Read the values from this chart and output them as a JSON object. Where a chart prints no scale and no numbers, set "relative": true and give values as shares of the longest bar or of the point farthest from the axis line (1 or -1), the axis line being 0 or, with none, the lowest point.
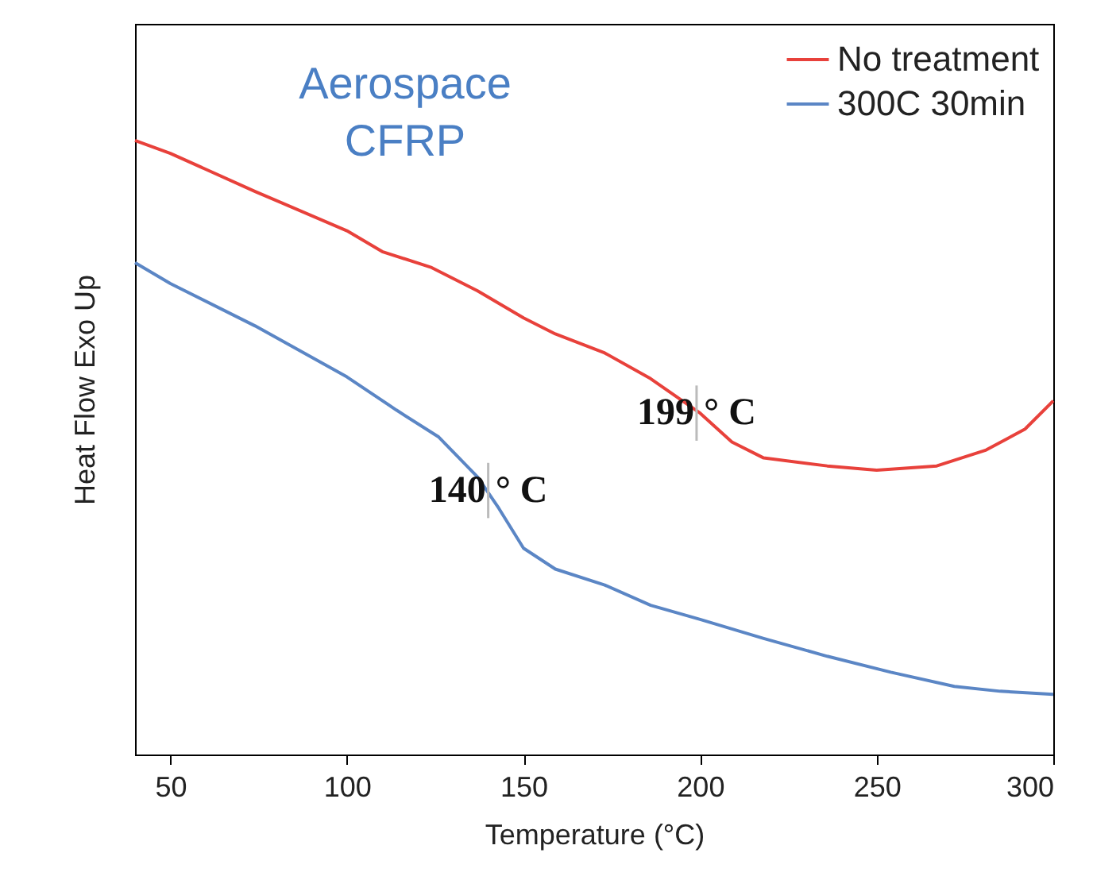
{
  "chart_data": {
    "type": "line",
    "relative": true,
    "xlabel": "Temperature (°C)",
    "ylabel": "Heat Flow Exo Up",
    "xlim": [
      40,
      300
    ],
    "xticks": [
      50,
      100,
      150,
      200,
      250,
      300
    ],
    "grid": false,
    "legend": "top right",
    "line_style": "solid",
    "marker": "none",
    "series": [
      {
        "name": "No treatment",
        "color": "#e8413b",
        "x": [
          40,
          50,
          74,
          100,
          110,
          124,
          137,
          150,
          159,
          173,
          186,
          200,
          209,
          218,
          236,
          250,
          267,
          281,
          292,
          300
        ],
        "values": [
          1,
          0.979,
          0.917,
          0.853,
          0.819,
          0.793,
          0.755,
          0.711,
          0.685,
          0.654,
          0.612,
          0.556,
          0.509,
          0.483,
          0.47,
          0.463,
          0.47,
          0.496,
          0.53,
          0.576
        ]
      },
      {
        "name": "300C 30min",
        "color": "#5b86c5",
        "x": [
          40,
          50,
          74,
          100,
          114,
          126,
          137,
          143,
          150,
          159,
          173,
          186,
          200,
          218,
          236,
          254,
          272,
          285,
          300
        ],
        "values": [
          0.801,
          0.767,
          0.698,
          0.615,
          0.561,
          0.517,
          0.452,
          0.401,
          0.336,
          0.302,
          0.276,
          0.243,
          0.22,
          0.189,
          0.16,
          0.134,
          0.111,
          0.103,
          0.098
        ]
      }
    ],
    "annotations": [
      "Aerospace\nCFRP",
      {
        "text": "199 ° C",
        "x": 199,
        "y": 0.556
      },
      {
        "text": "140 ° C",
        "x": 140,
        "y": 0.43
      }
    ]
  }
}
